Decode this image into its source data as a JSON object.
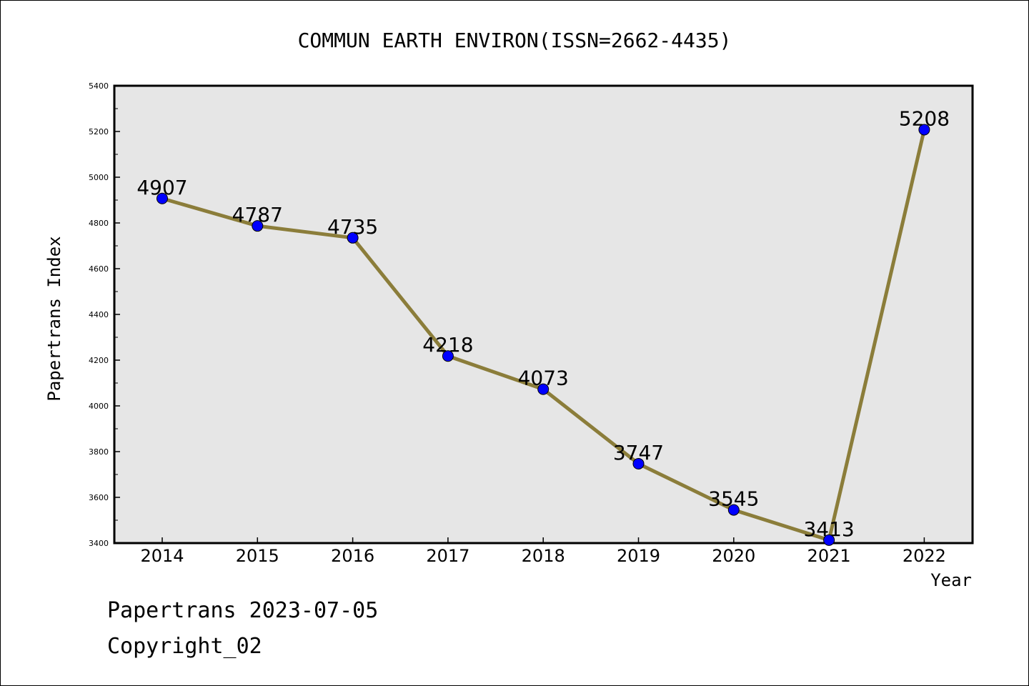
{
  "footer": {
    "line1": "Papertrans 2023-07-05",
    "line2": "Copyright_02"
  },
  "chart_data": {
    "type": "line",
    "title": "COMMUN EARTH ENVIRON(ISSN=2662-4435)",
    "xlabel": "Year",
    "ylabel": "Papertrans Index",
    "categories": [
      "2014",
      "2015",
      "2016",
      "2017",
      "2018",
      "2019",
      "2020",
      "2021",
      "2022"
    ],
    "values": [
      4907,
      4787,
      4735,
      4218,
      4073,
      3747,
      3545,
      3413,
      5208
    ],
    "ylim": [
      3400,
      5400
    ],
    "yticks": [
      3400,
      3600,
      3800,
      4000,
      4200,
      4400,
      4600,
      4800,
      5000,
      5200,
      5400
    ],
    "grid": false,
    "legend": "none",
    "colors": {
      "plot_background": "#e6e6e6",
      "line": "#8b7d3a",
      "marker": "#0000ff"
    }
  }
}
